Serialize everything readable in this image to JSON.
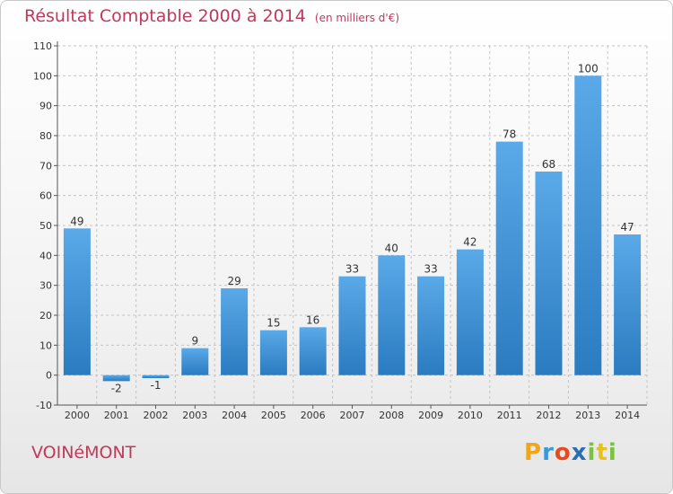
{
  "title": "Résultat Comptable 2000 à 2014",
  "subtitle": "(en milliers d'€)",
  "location": "VOINéMONT",
  "logo": {
    "text": "Proxiti",
    "letters": [
      {
        "ch": "P",
        "color": "#f2a51c"
      },
      {
        "ch": "r",
        "color": "#3a9ad9"
      },
      {
        "ch": "o",
        "color": "#e84a1b"
      },
      {
        "ch": "x",
        "color": "#2b6db3"
      },
      {
        "ch": "i",
        "color": "#7cc242"
      },
      {
        "ch": "t",
        "color": "#e8c21b"
      },
      {
        "ch": "i",
        "color": "#7cc242"
      }
    ]
  },
  "colors": {
    "bar_light": "#5aa9e8",
    "bar_dark": "#2a7bc0",
    "title": "#c0395a"
  },
  "chart_data": {
    "type": "bar",
    "title": "Résultat Comptable 2000 à 2014",
    "subtitle": "(en milliers d'€)",
    "categories": [
      "2000",
      "2001",
      "2002",
      "2003",
      "2004",
      "2005",
      "2006",
      "2007",
      "2008",
      "2009",
      "2010",
      "2011",
      "2012",
      "2013",
      "2014"
    ],
    "values": [
      49,
      -2,
      -1,
      9,
      29,
      15,
      16,
      33,
      40,
      33,
      42,
      78,
      68,
      100,
      47
    ],
    "ylim": [
      -10,
      110
    ],
    "yticks": [
      -10,
      0,
      10,
      20,
      30,
      40,
      50,
      60,
      70,
      80,
      90,
      100,
      110
    ],
    "grid": true,
    "xlabel": "",
    "ylabel": ""
  }
}
